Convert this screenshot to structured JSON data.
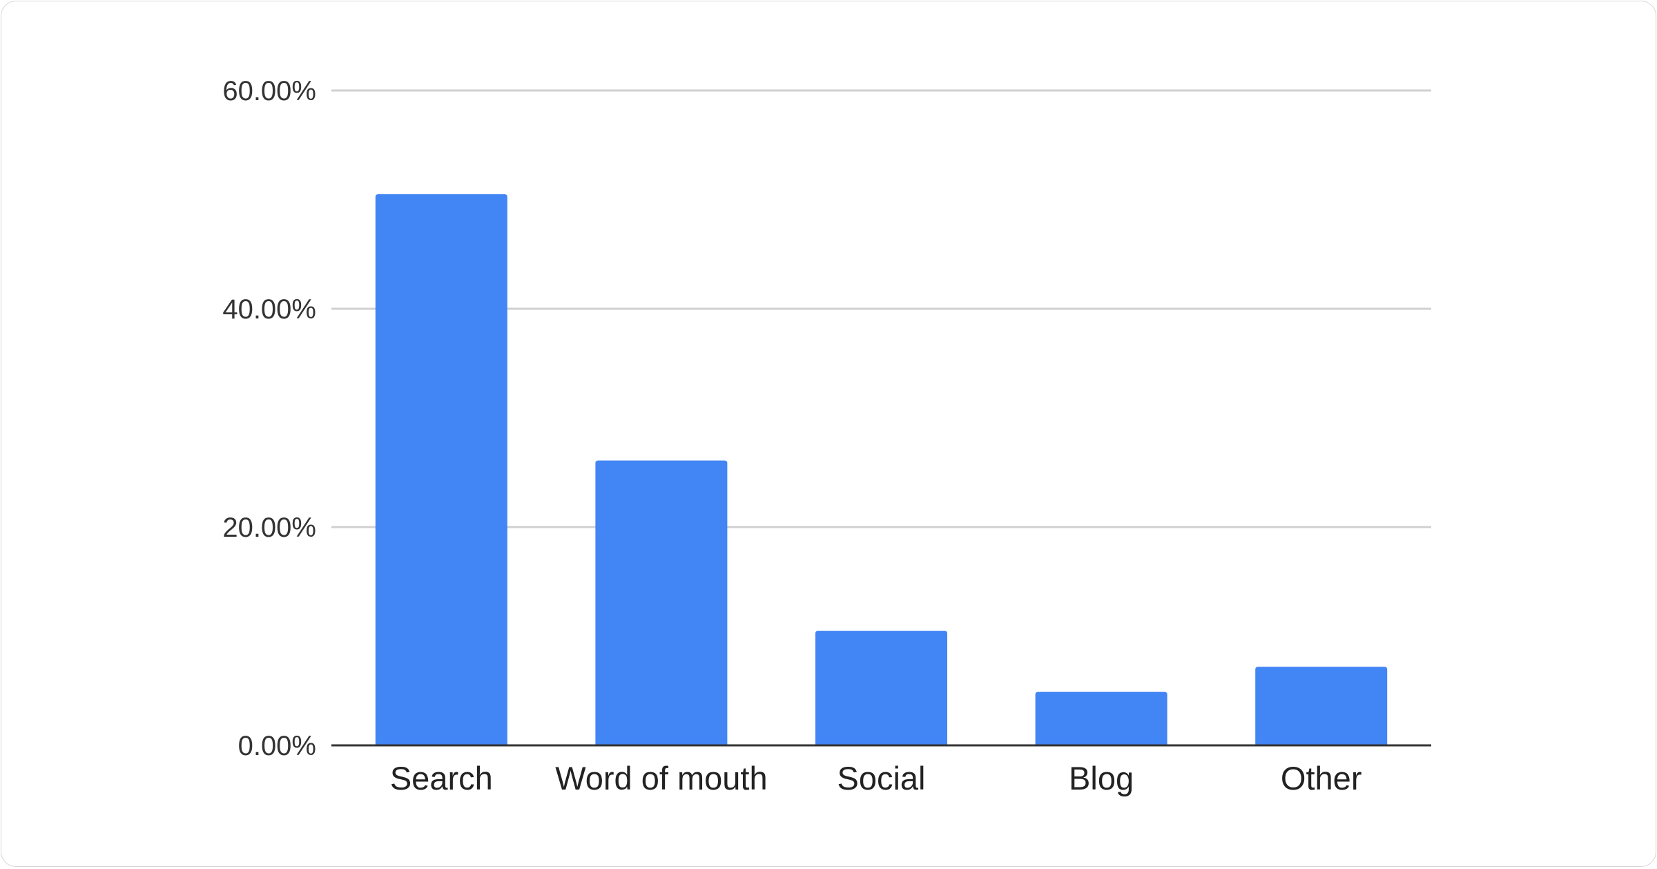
{
  "chart_data": {
    "type": "bar",
    "title": "",
    "xlabel": "",
    "ylabel": "",
    "categories": [
      "Search",
      "Word of mouth",
      "Social",
      "Blog",
      "Other"
    ],
    "values": [
      50.5,
      26.1,
      10.5,
      4.9,
      7.2
    ],
    "unit": "%",
    "ylim": [
      0,
      60
    ],
    "yticks": [
      0,
      20,
      40,
      60
    ],
    "ytick_labels": [
      "0.00%",
      "20.00%",
      "40.00%",
      "60.00%"
    ],
    "grid": true,
    "legend": "none",
    "bar_color": "#4285f4"
  }
}
